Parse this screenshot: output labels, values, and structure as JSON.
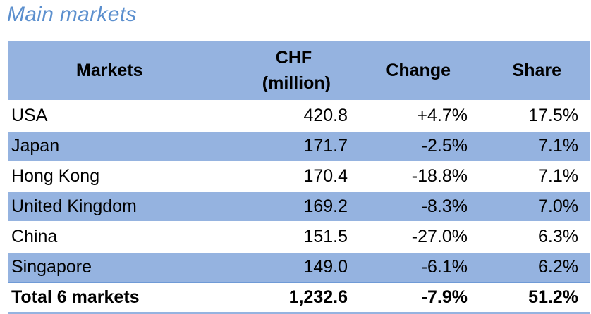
{
  "title": "Main markets",
  "table": {
    "headers": {
      "markets": "Markets",
      "chf_line1": "CHF",
      "chf_line2": "(million)",
      "change": "Change",
      "share": "Share"
    },
    "rows": [
      {
        "market": "USA",
        "chf": "420.8",
        "change": "+4.7%",
        "share": "17.5%"
      },
      {
        "market": "Japan",
        "chf": "171.7",
        "change": "-2.5%",
        "share": "7.1%"
      },
      {
        "market": "Hong Kong",
        "chf": "170.4",
        "change": "-18.8%",
        "share": "7.1%"
      },
      {
        "market": "United Kingdom",
        "chf": "169.2",
        "change": "-8.3%",
        "share": "7.0%"
      },
      {
        "market": "China",
        "chf": "151.5",
        "change": "-27.0%",
        "share": "6.3%"
      },
      {
        "market": "Singapore",
        "chf": "149.0",
        "change": "-6.1%",
        "share": "6.2%"
      }
    ],
    "total": {
      "market": "Total 6 markets",
      "chf": "1,232.6",
      "change": "-7.9%",
      "share": "51.2%"
    }
  },
  "colors": {
    "title": "#5b8fce",
    "band": "#95b3e0",
    "total_rule": "#6f9ad6"
  }
}
